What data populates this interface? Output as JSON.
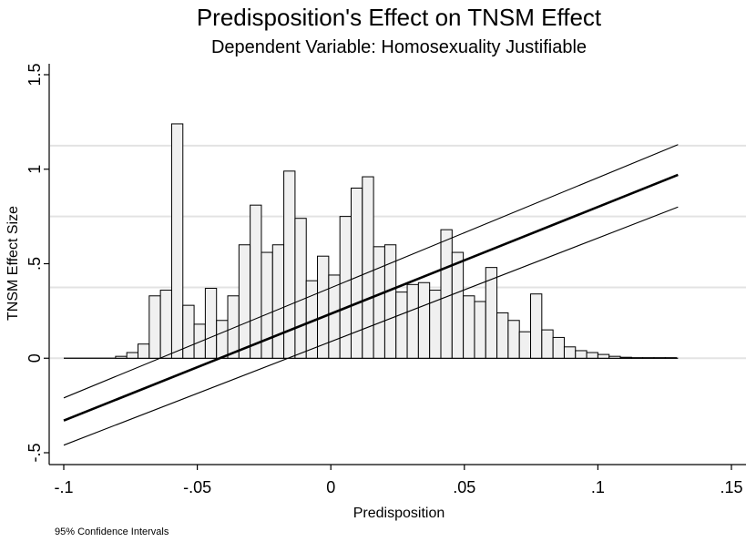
{
  "chart_data": {
    "type": "bar",
    "title": "Predisposition's Effect on TNSM Effect",
    "subtitle": "Dependent Variable: Homosexuality Justifiable",
    "xlabel": "Predisposition",
    "ylabel": "TNSM Effect Size",
    "note": "95% Confidence Intervals",
    "xlim": [
      -0.1,
      0.15
    ],
    "ylim": [
      -0.5,
      1.5
    ],
    "x_ticks": [
      {
        "value": -0.1,
        "label": "-.1"
      },
      {
        "value": -0.05,
        "label": "-.05"
      },
      {
        "value": 0,
        "label": "0"
      },
      {
        "value": 0.05,
        "label": ".05"
      },
      {
        "value": 0.1,
        "label": ".1"
      },
      {
        "value": 0.15,
        "label": ".15"
      }
    ],
    "y_ticks": [
      {
        "value": -0.5,
        "label": "-.5"
      },
      {
        "value": 0,
        "label": "0"
      },
      {
        "value": 0.5,
        "label": ".5"
      },
      {
        "value": 1,
        "label": "1"
      },
      {
        "value": 1.5,
        "label": "1.5"
      }
    ],
    "gridlines_y": [
      0,
      0.375,
      0.75,
      1.125
    ],
    "grid": true,
    "bar_width": 0.0042,
    "histogram": {
      "x": [
        -0.0785,
        -0.0743,
        -0.0701,
        -0.0659,
        -0.0617,
        -0.0575,
        -0.0533,
        -0.0491,
        -0.0449,
        -0.0407,
        -0.0365,
        -0.0323,
        -0.0281,
        -0.0239,
        -0.0197,
        -0.0155,
        -0.0113,
        -0.0071,
        -0.0029,
        0.0013,
        0.0055,
        0.0097,
        0.0139,
        0.0181,
        0.0223,
        0.0265,
        0.0307,
        0.0349,
        0.0391,
        0.0433,
        0.0475,
        0.0517,
        0.0559,
        0.0601,
        0.0643,
        0.0685,
        0.0727,
        0.0769,
        0.0811,
        0.0853,
        0.0895,
        0.0937,
        0.0979,
        0.1021,
        0.1063,
        0.1105,
        0.1147,
        0.1189,
        0.1231,
        0.1273
      ],
      "values": [
        0.01,
        0.03,
        0.075,
        0.33,
        0.36,
        1.24,
        0.28,
        0.18,
        0.37,
        0.2,
        0.33,
        0.6,
        0.81,
        0.56,
        0.6,
        0.99,
        0.74,
        0.41,
        0.54,
        0.44,
        0.75,
        0.9,
        0.96,
        0.59,
        0.6,
        0.35,
        0.39,
        0.4,
        0.36,
        0.68,
        0.56,
        0.33,
        0.3,
        0.48,
        0.24,
        0.2,
        0.14,
        0.34,
        0.15,
        0.11,
        0.06,
        0.04,
        0.03,
        0.02,
        0.01,
        0.005,
        0.003,
        0.003,
        0.003,
        0.003
      ]
    },
    "series": [
      {
        "type": "line",
        "role": "estimate",
        "x": [
          -0.1,
          0.13
        ],
        "y": [
          -0.33,
          0.97
        ]
      },
      {
        "type": "line",
        "role": "upper",
        "x": [
          -0.1,
          0.13
        ],
        "y": [
          -0.21,
          1.13
        ]
      },
      {
        "type": "line",
        "role": "lower",
        "x": [
          -0.1,
          0.13
        ],
        "y": [
          -0.46,
          0.8
        ]
      }
    ],
    "baseline_x": [
      -0.1,
      0.13
    ],
    "colors": {
      "bar_fill": "#f0f0f0",
      "bar_stroke": "#000000",
      "gridline": "#e3e3e3",
      "line": "#000000",
      "background": "#ffffff"
    }
  }
}
